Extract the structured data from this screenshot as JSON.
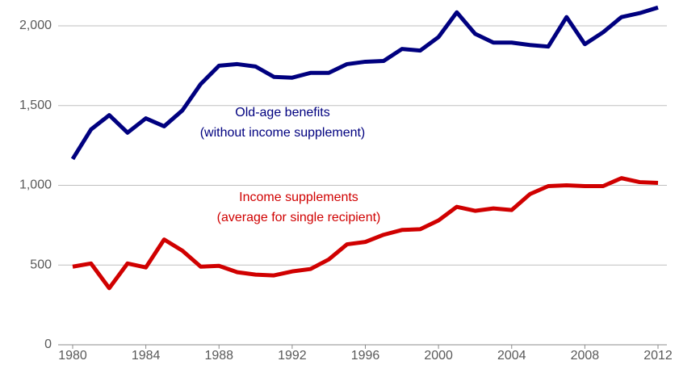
{
  "chart_data": {
    "type": "line",
    "x": [
      1980,
      1981,
      1982,
      1983,
      1984,
      1985,
      1986,
      1987,
      1988,
      1989,
      1990,
      1991,
      1992,
      1993,
      1994,
      1995,
      1996,
      1997,
      1998,
      1999,
      2000,
      2001,
      2002,
      2003,
      2004,
      2005,
      2006,
      2007,
      2008,
      2009,
      2010,
      2011,
      2012
    ],
    "series": [
      {
        "label": [
          "Old-age benefits",
          "(without income supplement)"
        ],
        "color": "#00007f",
        "values": [
          1165,
          1350,
          1440,
          1330,
          1420,
          1370,
          1470,
          1635,
          1750,
          1760,
          1745,
          1680,
          1675,
          1705,
          1705,
          1760,
          1775,
          1780,
          1855,
          1845,
          1930,
          2085,
          1950,
          1895,
          1895,
          1880,
          1870,
          2055,
          1885,
          1960,
          2055,
          2080,
          2115
        ]
      },
      {
        "label": [
          "Income supplements",
          "(average for single recipient)"
        ],
        "color": "#d00000",
        "values": [
          490,
          510,
          355,
          510,
          485,
          660,
          590,
          490,
          495,
          455,
          440,
          435,
          460,
          475,
          535,
          630,
          645,
          690,
          720,
          725,
          780,
          865,
          840,
          855,
          845,
          945,
          995,
          1000,
          995,
          995,
          1045,
          1020,
          1015
        ]
      }
    ],
    "xlim": [
      1980,
      2012
    ],
    "xticks": [
      1980,
      1984,
      1988,
      1992,
      1996,
      2000,
      2004,
      2008,
      2012
    ],
    "ylim": [
      0,
      2150
    ],
    "yticks": [
      0,
      500,
      {
        "value": 1000,
        "label": "1,000"
      },
      {
        "value": 1500,
        "label": "1,500"
      },
      {
        "value": 2000,
        "label": "2,000"
      }
    ],
    "grid": true
  }
}
